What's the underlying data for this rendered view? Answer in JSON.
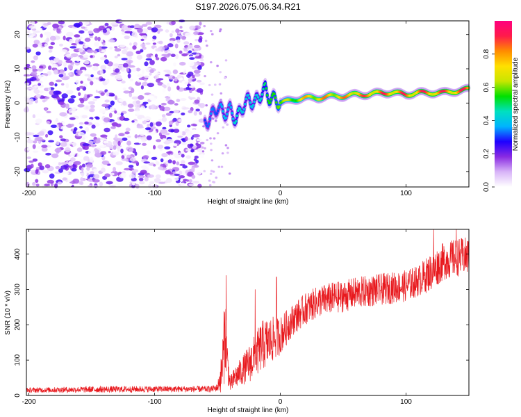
{
  "title": "S197.2026.075.06.34.R21",
  "chart_data": [
    {
      "type": "heatmap",
      "xlabel": "Height of straight line (km)",
      "ylabel": "Frequency (Hz)",
      "xlim": [
        -202,
        150
      ],
      "ylim": [
        -24.5,
        24
      ],
      "xticks": [
        -200,
        -100,
        0,
        100
      ],
      "yticks": [
        -20,
        -10,
        0,
        10,
        20
      ],
      "colorbar": {
        "label": "Normalized spectral amplitude",
        "range": [
          0.0,
          1.0
        ],
        "ticks": [
          0.0,
          0.2,
          0.4,
          0.6,
          0.8
        ],
        "tick_labels": [
          "0.0",
          "0.2",
          "0.4",
          "0.6",
          "0.8"
        ],
        "colors": [
          "#ffffff",
          "#d8b4f8",
          "#8a2be2",
          "#1e00ff",
          "#00b4ff",
          "#00e0c0",
          "#00e000",
          "#c8e600",
          "#ffe000",
          "#ff8c00",
          "#ff1a4a",
          "#ff007f"
        ]
      },
      "noise_region_x": [
        -202,
        -62
      ],
      "ridge": {
        "x": [
          -60,
          -55,
          -50,
          -45,
          -40,
          -35,
          -30,
          -25,
          -20,
          -15,
          -12,
          -10,
          -5,
          0,
          10,
          20,
          30,
          40,
          50,
          60,
          70,
          80,
          90,
          100,
          110,
          120,
          130,
          140,
          150
        ],
        "freq": [
          -6,
          -4,
          -1,
          -3,
          -2,
          -5,
          -1,
          1,
          0,
          3,
          4,
          2,
          1,
          0,
          1,
          1.5,
          1.5,
          2,
          2,
          2.5,
          2.5,
          3,
          3,
          2.5,
          3,
          3,
          3,
          3.5,
          4
        ],
        "value": [
          0.3,
          0.35,
          0.3,
          0.4,
          0.35,
          0.45,
          0.4,
          0.4,
          0.4,
          0.45,
          0.5,
          0.55,
          0.55,
          0.6,
          0.75,
          0.8,
          0.85,
          0.85,
          0.85,
          0.9,
          0.9,
          0.92,
          0.92,
          0.92,
          0.93,
          0.93,
          0.93,
          0.94,
          0.94
        ]
      }
    },
    {
      "type": "line",
      "xlabel": "Height of straight line (km)",
      "ylabel": "SNR (10 * v/v)",
      "xlim": [
        -202,
        150
      ],
      "ylim": [
        0,
        470
      ],
      "xticks": [
        -200,
        -100,
        0,
        100
      ],
      "yticks": [
        0,
        100,
        200,
        300,
        400
      ],
      "color": "#e8191e",
      "envelope": {
        "x": [
          -202,
          -150,
          -100,
          -70,
          -55,
          -50,
          -47,
          -45,
          -44,
          -42,
          -40,
          -35,
          -30,
          -25,
          -20,
          -15,
          -10,
          -5,
          0,
          10,
          20,
          30,
          40,
          50,
          60,
          70,
          80,
          90,
          100,
          110,
          120,
          130,
          140,
          150
        ],
        "mean": [
          15,
          17,
          18,
          18,
          18,
          22,
          60,
          120,
          200,
          90,
          30,
          55,
          70,
          90,
          110,
          140,
          150,
          160,
          170,
          215,
          245,
          265,
          275,
          280,
          290,
          295,
          300,
          305,
          310,
          325,
          350,
          380,
          390,
          395
        ],
        "amp": [
          8,
          10,
          10,
          10,
          10,
          12,
          60,
          120,
          140,
          60,
          25,
          40,
          45,
          60,
          70,
          80,
          80,
          70,
          60,
          50,
          50,
          50,
          50,
          50,
          50,
          50,
          50,
          50,
          50,
          50,
          60,
          60,
          60,
          60
        ],
        "spikes": [
          {
            "x": -43,
            "y": 340
          },
          {
            "x": -20,
            "y": 300
          },
          {
            "x": -3,
            "y": 335
          },
          {
            "x": 122,
            "y": 470
          },
          {
            "x": 140,
            "y": 470
          }
        ]
      }
    }
  ]
}
